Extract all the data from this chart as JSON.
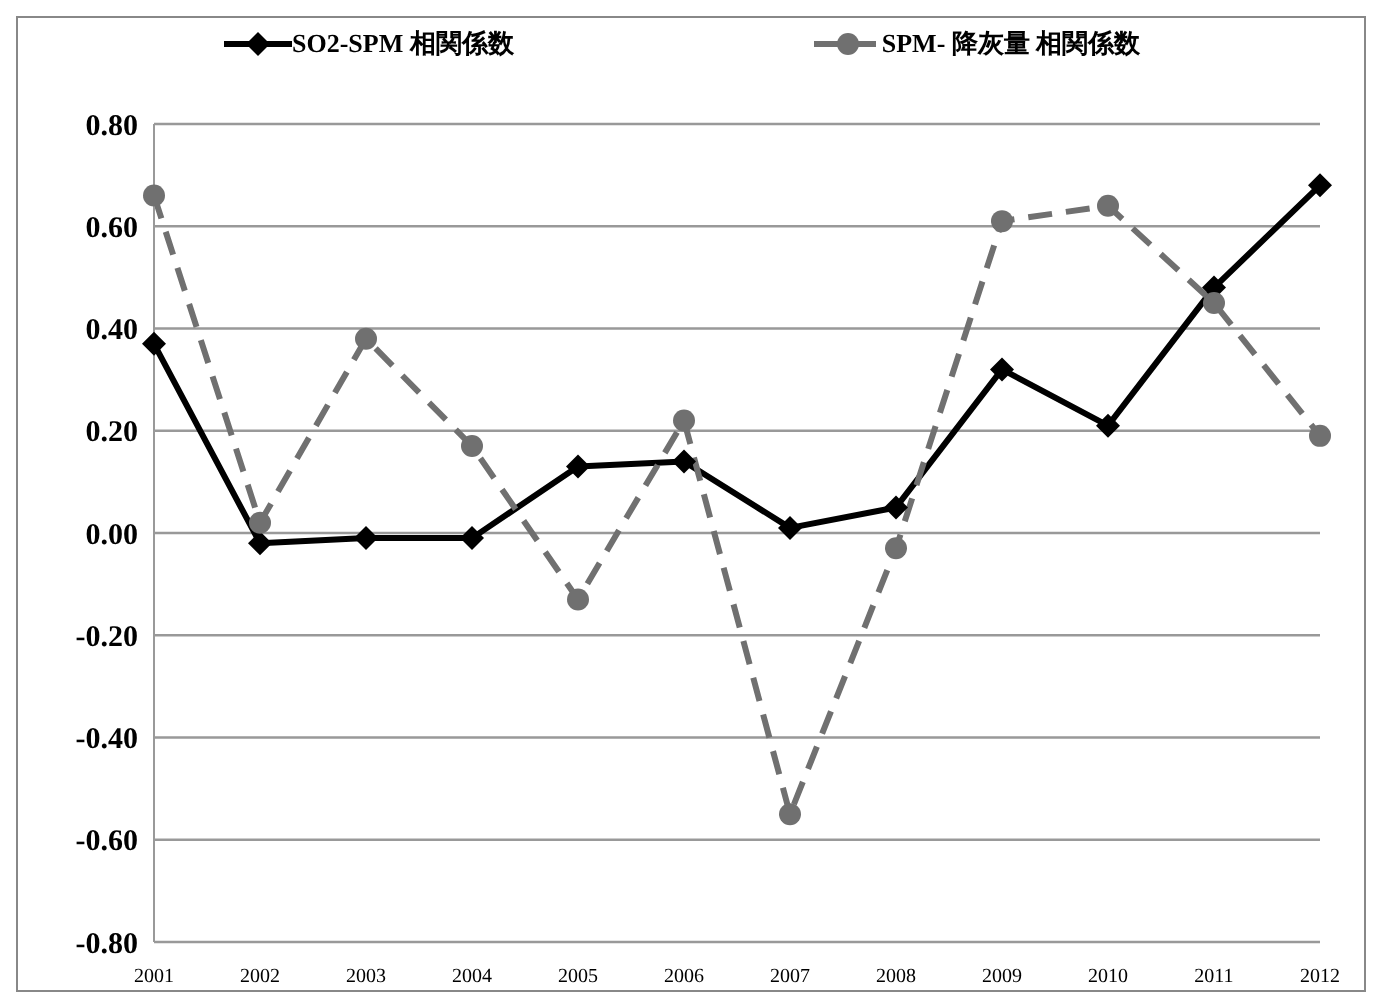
{
  "chart_data": {
    "type": "line",
    "categories": [
      "2001",
      "2002",
      "2003",
      "2004",
      "2005",
      "2006",
      "2007",
      "2008",
      "2009",
      "2010",
      "2011",
      "2012"
    ],
    "series": [
      {
        "name": "SO2-SPM  相関係数",
        "color": "#000000",
        "marker": "diamond",
        "line_style": "solid",
        "values": [
          0.37,
          -0.02,
          -0.01,
          -0.01,
          0.13,
          0.14,
          0.01,
          0.05,
          0.32,
          0.21,
          0.48,
          0.68
        ]
      },
      {
        "name": "SPM- 降灰量  相関係数",
        "color": "#707070",
        "marker": "circle",
        "line_style": "dashed",
        "values": [
          0.66,
          0.02,
          0.38,
          0.17,
          -0.13,
          0.22,
          -0.55,
          -0.03,
          0.61,
          0.64,
          0.45,
          0.19
        ]
      }
    ],
    "ylim": [
      -0.8,
      0.8
    ],
    "yticks": [
      {
        "value": -0.8,
        "label": "-0.80"
      },
      {
        "value": -0.6,
        "label": "-0.60"
      },
      {
        "value": -0.4,
        "label": "-0.40"
      },
      {
        "value": -0.2,
        "label": "-0.20"
      },
      {
        "value": 0,
        "label": "0.00"
      },
      {
        "value": 0.2,
        "label": "0.20"
      },
      {
        "value": 0.4,
        "label": "0.40"
      },
      {
        "value": 0.6,
        "label": "0.60"
      },
      {
        "value": 0.8,
        "label": "0.80"
      }
    ],
    "grid": "y",
    "legend": "top left"
  }
}
